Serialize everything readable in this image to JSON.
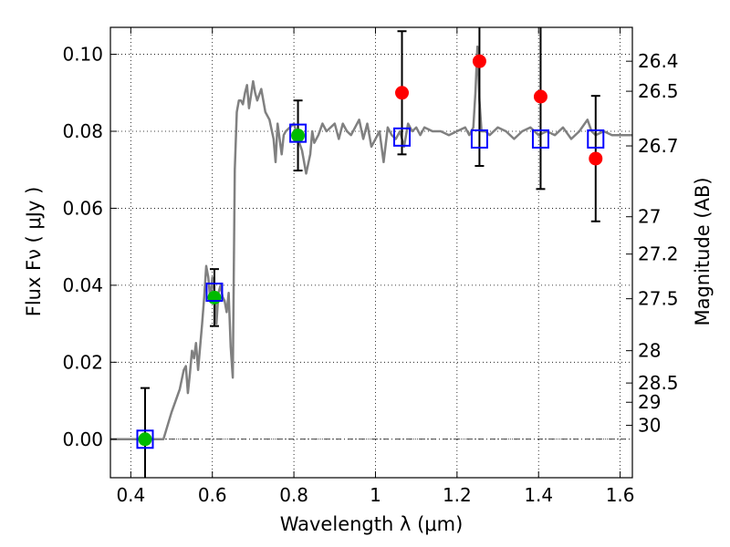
{
  "chart_data": {
    "type": "scatter",
    "xlabel": "Wavelength  λ (μm)",
    "ylabel": "Flux  Fν  ( μJy )",
    "y2label": "Magnitude (AB)",
    "xlim": [
      0.35,
      1.63
    ],
    "ylim": [
      -0.01,
      0.107
    ],
    "x_ticks": [
      0.4,
      0.6,
      0.8,
      1.0,
      1.2,
      1.4,
      1.6
    ],
    "x_tick_labels": [
      "0.4",
      "0.6",
      "0.8",
      "1",
      "1.2",
      "1.4",
      "1.6"
    ],
    "y_ticks": [
      0.0,
      0.02,
      0.04,
      0.06,
      0.08,
      0.1
    ],
    "y_tick_labels": [
      "0.00",
      "0.02",
      "0.04",
      "0.06",
      "0.08",
      "0.10"
    ],
    "mag_ticks": [
      {
        "label": "26.4",
        "flux": 0.0982
      },
      {
        "label": "26.5",
        "flux": 0.0904
      },
      {
        "label": "26.7",
        "flux": 0.0762
      },
      {
        "label": "27",
        "flux": 0.0578
      },
      {
        "label": "27.2",
        "flux": 0.0481
      },
      {
        "label": "27.5",
        "flux": 0.0365
      },
      {
        "label": "28",
        "flux": 0.023
      },
      {
        "label": "28.5",
        "flux": 0.0146
      },
      {
        "label": "29",
        "flux": 0.0096
      },
      {
        "label": "30",
        "flux": 0.0036
      }
    ],
    "grid": true,
    "colors": {
      "model": "#808080",
      "green_points": "#00bb00",
      "red_points": "#ff0000",
      "model_squares": "#0000ff",
      "errorbar": "#000000",
      "zero_line": "#000000"
    },
    "series": [
      {
        "name": "model spectrum",
        "type": "line",
        "x": [
          0.35,
          0.48,
          0.5,
          0.52,
          0.53,
          0.535,
          0.54,
          0.545,
          0.55,
          0.555,
          0.56,
          0.565,
          0.57,
          0.575,
          0.58,
          0.585,
          0.59,
          0.595,
          0.6,
          0.605,
          0.61,
          0.615,
          0.62,
          0.625,
          0.63,
          0.635,
          0.64,
          0.645,
          0.65,
          0.655,
          0.66,
          0.665,
          0.67,
          0.675,
          0.68,
          0.685,
          0.69,
          0.7,
          0.705,
          0.71,
          0.72,
          0.73,
          0.74,
          0.75,
          0.755,
          0.76,
          0.77,
          0.775,
          0.78,
          0.79,
          0.8,
          0.81,
          0.82,
          0.83,
          0.84,
          0.845,
          0.85,
          0.86,
          0.87,
          0.88,
          0.9,
          0.91,
          0.92,
          0.93,
          0.94,
          0.95,
          0.96,
          0.97,
          0.98,
          0.99,
          1.0,
          1.01,
          1.02,
          1.03,
          1.04,
          1.05,
          1.06,
          1.07,
          1.08,
          1.09,
          1.1,
          1.11,
          1.12,
          1.14,
          1.16,
          1.18,
          1.2,
          1.22,
          1.23,
          1.24,
          1.245,
          1.25,
          1.255,
          1.26,
          1.27,
          1.28,
          1.3,
          1.32,
          1.34,
          1.36,
          1.38,
          1.4,
          1.42,
          1.44,
          1.46,
          1.48,
          1.5,
          1.52,
          1.53,
          1.54,
          1.56,
          1.58,
          1.6,
          1.63
        ],
        "y": [
          0.0,
          0.0,
          0.007,
          0.013,
          0.018,
          0.019,
          0.012,
          0.017,
          0.023,
          0.021,
          0.025,
          0.018,
          0.024,
          0.03,
          0.037,
          0.045,
          0.042,
          0.036,
          0.042,
          0.038,
          0.03,
          0.038,
          0.04,
          0.037,
          0.036,
          0.033,
          0.038,
          0.024,
          0.016,
          0.07,
          0.085,
          0.088,
          0.088,
          0.087,
          0.09,
          0.092,
          0.086,
          0.093,
          0.09,
          0.088,
          0.091,
          0.085,
          0.083,
          0.078,
          0.072,
          0.082,
          0.074,
          0.079,
          0.08,
          0.081,
          0.082,
          0.078,
          0.075,
          0.069,
          0.074,
          0.08,
          0.077,
          0.079,
          0.082,
          0.08,
          0.082,
          0.078,
          0.082,
          0.08,
          0.079,
          0.081,
          0.083,
          0.078,
          0.082,
          0.076,
          0.078,
          0.08,
          0.072,
          0.081,
          0.079,
          0.078,
          0.08,
          0.076,
          0.082,
          0.08,
          0.081,
          0.079,
          0.081,
          0.08,
          0.08,
          0.079,
          0.08,
          0.081,
          0.079,
          0.081,
          0.09,
          0.102,
          0.088,
          0.08,
          0.08,
          0.079,
          0.081,
          0.08,
          0.078,
          0.08,
          0.081,
          0.079,
          0.08,
          0.079,
          0.081,
          0.078,
          0.08,
          0.083,
          0.08,
          0.079,
          0.08,
          0.079,
          0.079,
          0.079
        ]
      },
      {
        "name": "model bandpass fluxes",
        "type": "square",
        "x": [
          0.435,
          0.605,
          0.81,
          1.065,
          1.255,
          1.405,
          1.54
        ],
        "y": [
          0.0,
          0.0382,
          0.0795,
          0.0785,
          0.078,
          0.078,
          0.078
        ]
      },
      {
        "name": "detections (green)",
        "type": "point",
        "x": [
          0.435,
          0.605,
          0.81
        ],
        "y": [
          0.0,
          0.0368,
          0.0789
        ],
        "yerr": [
          0.0133,
          0.0074,
          0.0091
        ]
      },
      {
        "name": "detections (red)",
        "type": "point",
        "x": [
          1.065,
          1.255,
          1.405,
          1.54
        ],
        "y": [
          0.09,
          0.0982,
          0.089,
          0.0729
        ],
        "yerr": [
          0.016,
          0.0272,
          0.024,
          0.0163
        ]
      }
    ]
  }
}
